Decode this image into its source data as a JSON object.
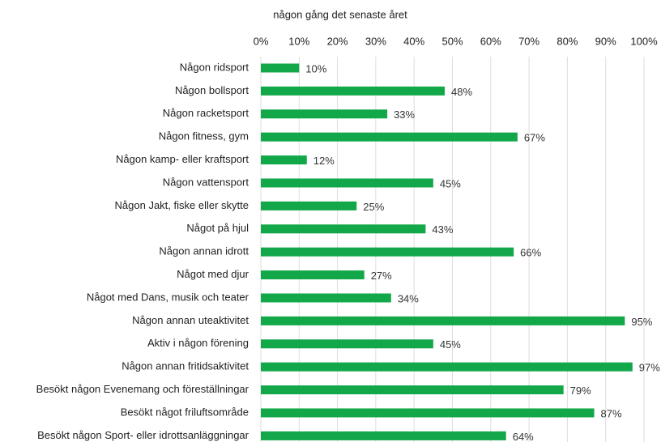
{
  "chart_data": {
    "type": "bar",
    "orientation": "horizontal",
    "title": "någon gång det senaste året",
    "categories": [
      "Någon ridsport",
      "Någon bollsport",
      "Någon racketsport",
      "Någon fitness, gym",
      "Någon kamp- eller kraftsport",
      "Någon vattensport",
      "Någon Jakt, fiske eller skytte",
      "Något på hjul",
      "Någon annan idrott",
      "Något med djur",
      "Något med Dans, musik och teater",
      "Någon annan uteaktivitet",
      "Aktiv i någon förening",
      "Någon annan fritidsaktivitet",
      "Besökt någon Evenemang och föreställningar",
      "Besökt något friluftsområde",
      "Besökt någon Sport- eller idrottsanläggningar"
    ],
    "values": [
      10,
      48,
      33,
      67,
      12,
      45,
      25,
      43,
      66,
      27,
      34,
      95,
      45,
      97,
      79,
      87,
      64
    ],
    "value_labels": [
      "10%",
      "48%",
      "33%",
      "67%",
      "12%",
      "45%",
      "25%",
      "43%",
      "66%",
      "27%",
      "34%",
      "95%",
      "45%",
      "97%",
      "79%",
      "87%",
      "64%"
    ],
    "color": "#12a84a",
    "xlim": [
      0,
      100
    ],
    "xticks": [
      {
        "value": 0,
        "label": "0%"
      },
      {
        "value": 10,
        "label": "10%"
      },
      {
        "value": 20,
        "label": "20%"
      },
      {
        "value": 30,
        "label": "30%"
      },
      {
        "value": 40,
        "label": "40%"
      },
      {
        "value": 50,
        "label": "50%"
      },
      {
        "value": 60,
        "label": "60%"
      },
      {
        "value": 70,
        "label": "70%"
      },
      {
        "value": 80,
        "label": "80%"
      },
      {
        "value": 90,
        "label": "90%"
      },
      {
        "value": 100,
        "label": "100%"
      }
    ],
    "grid": true
  }
}
